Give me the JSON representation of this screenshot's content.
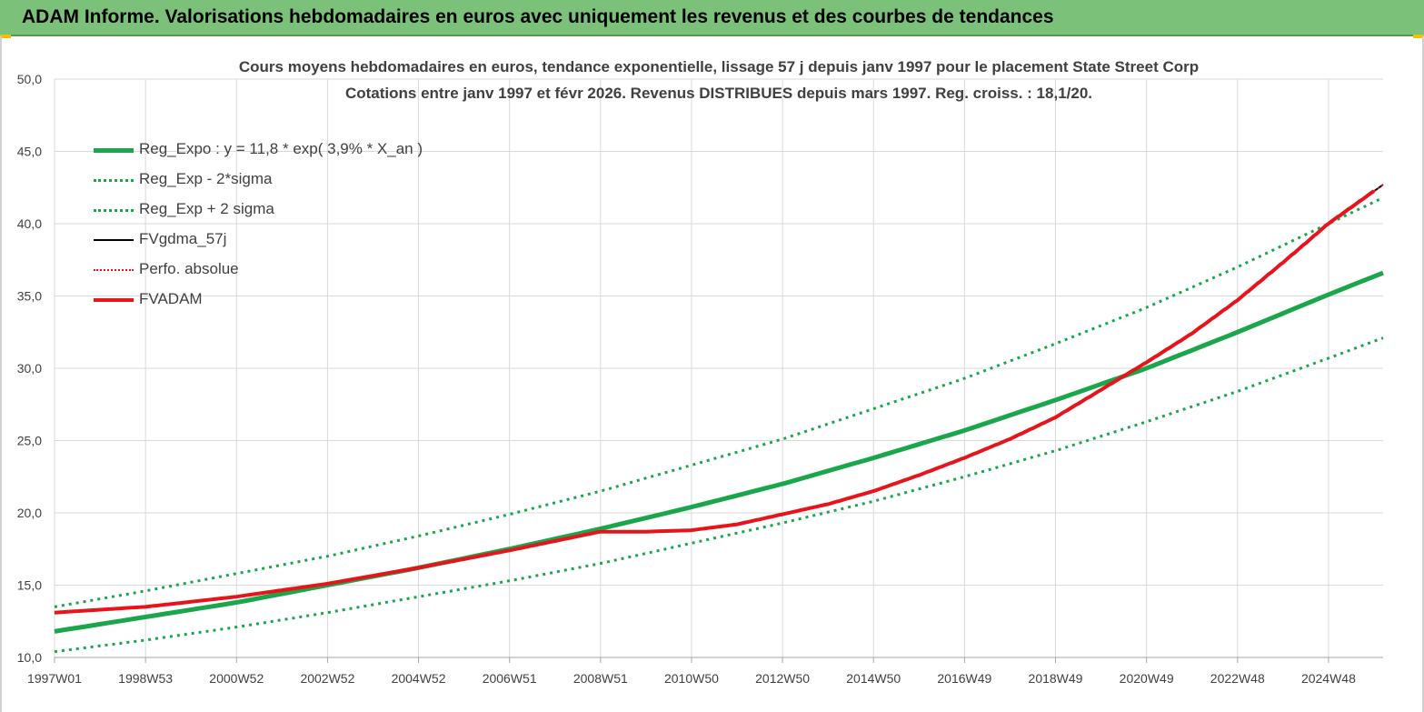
{
  "header": {
    "title": "ADAM Informe. Valorisations hebdomadaires en euros avec uniquement les revenus et des courbes de tendances"
  },
  "chart_data": {
    "type": "line",
    "title": "Cours moyens hebdomadaires en euros, tendance exponentielle, lissage 57 j depuis janv 1997 pour le placement State Street Corp",
    "subtitle": "Cotations entre janv 1997 et févr 2026. Revenus DISTRIBUES depuis mars 1997. Reg. croiss. : 18,1/20.",
    "xlabel": "",
    "ylabel": "",
    "ylim": [
      10,
      50
    ],
    "xlim": [
      1997.0,
      2026.2
    ],
    "grid": true,
    "legend_position": "top-left",
    "y_ticks": [
      "10,0",
      "15,0",
      "20,0",
      "25,0",
      "30,0",
      "35,0",
      "40,0",
      "45,0",
      "50,0"
    ],
    "x_ticks": [
      {
        "label": "1997W01",
        "t": 1997.0
      },
      {
        "label": "1998W53",
        "t": 1999.0
      },
      {
        "label": "2000W52",
        "t": 2001.0
      },
      {
        "label": "2002W52",
        "t": 2003.0
      },
      {
        "label": "2004W52",
        "t": 2005.0
      },
      {
        "label": "2006W51",
        "t": 2007.0
      },
      {
        "label": "2008W51",
        "t": 2009.0
      },
      {
        "label": "2010W50",
        "t": 2011.0
      },
      {
        "label": "2012W50",
        "t": 2013.0
      },
      {
        "label": "2014W50",
        "t": 2015.0
      },
      {
        "label": "2016W49",
        "t": 2017.0
      },
      {
        "label": "2018W49",
        "t": 2019.0
      },
      {
        "label": "2020W49",
        "t": 2021.0
      },
      {
        "label": "2022W48",
        "t": 2023.0
      },
      {
        "label": "2024W48",
        "t": 2025.0
      }
    ],
    "series": [
      {
        "name": "Reg_Expo : y = 11,8 * exp( 3,9% *  X_an )",
        "color": "#1aa64a",
        "style": "solid",
        "width": 5,
        "x": [
          1997.0,
          1999.0,
          2001.0,
          2003.0,
          2005.0,
          2007.0,
          2009.0,
          2011.0,
          2013.0,
          2015.0,
          2017.0,
          2019.0,
          2021.0,
          2023.0,
          2025.0,
          2026.2
        ],
        "y": [
          11.8,
          12.8,
          13.8,
          15.0,
          16.2,
          17.5,
          18.9,
          20.4,
          22.0,
          23.8,
          25.7,
          27.8,
          30.0,
          32.5,
          35.1,
          36.6
        ]
      },
      {
        "name": "Reg_Exp - 2*sigma",
        "color": "#1aa64a",
        "style": "dotted",
        "width": 3,
        "x": [
          1997.0,
          1999.0,
          2001.0,
          2003.0,
          2005.0,
          2007.0,
          2009.0,
          2011.0,
          2013.0,
          2015.0,
          2017.0,
          2019.0,
          2021.0,
          2023.0,
          2025.0,
          2026.2
        ],
        "y": [
          10.4,
          11.2,
          12.1,
          13.1,
          14.2,
          15.3,
          16.5,
          17.9,
          19.3,
          20.8,
          22.5,
          24.3,
          26.3,
          28.4,
          30.7,
          32.1
        ]
      },
      {
        "name": "Reg_Exp + 2 sigma",
        "color": "#1aa64a",
        "style": "dotted",
        "width": 3,
        "x": [
          1997.0,
          1999.0,
          2001.0,
          2003.0,
          2005.0,
          2007.0,
          2009.0,
          2011.0,
          2013.0,
          2015.0,
          2017.0,
          2019.0,
          2021.0,
          2023.0,
          2025.0,
          2026.2
        ],
        "y": [
          13.5,
          14.6,
          15.8,
          17.0,
          18.4,
          19.9,
          21.5,
          23.3,
          25.1,
          27.2,
          29.3,
          31.7,
          34.2,
          37.0,
          40.0,
          41.8
        ]
      },
      {
        "name": "FVgdma_57j",
        "color": "#000000",
        "style": "solid",
        "width": 2,
        "x": [
          1997.0,
          1999.0,
          2001.0,
          2003.0,
          2005.0,
          2007.0,
          2009.0,
          2010.0,
          2011.0,
          2012.0,
          2013.0,
          2014.0,
          2015.0,
          2016.0,
          2017.0,
          2018.0,
          2019.0,
          2020.0,
          2021.0,
          2022.0,
          2023.0,
          2024.0,
          2025.0,
          2026.2
        ],
        "y": [
          13.1,
          13.5,
          14.2,
          15.1,
          16.2,
          17.4,
          18.7,
          18.7,
          18.8,
          19.2,
          19.9,
          20.6,
          21.5,
          22.6,
          23.8,
          25.1,
          26.6,
          28.5,
          30.4,
          32.4,
          34.7,
          37.3,
          40.0,
          42.7
        ]
      },
      {
        "name": "Perfo. absolue",
        "color": "#e8141b",
        "style": "dotted",
        "width": 2,
        "x": [
          1997.0,
          1999.0,
          2001.0,
          2003.0,
          2005.0,
          2007.0,
          2009.0,
          2010.0,
          2011.0,
          2012.0,
          2013.0,
          2014.0,
          2015.0,
          2016.0,
          2017.0,
          2018.0,
          2019.0,
          2020.0,
          2021.0,
          2022.0,
          2023.0,
          2024.0,
          2025.0,
          2026.2
        ],
        "y": [
          13.1,
          13.5,
          14.2,
          15.1,
          16.2,
          17.4,
          18.7,
          18.7,
          18.8,
          19.2,
          19.9,
          20.6,
          21.5,
          22.6,
          23.8,
          25.1,
          26.6,
          28.5,
          30.4,
          32.4,
          34.7,
          37.3,
          40.0,
          42.7
        ]
      },
      {
        "name": "FVADAM",
        "color": "#e8141b",
        "style": "solid",
        "width": 4,
        "x": [
          1997.0,
          1999.0,
          2001.0,
          2003.0,
          2005.0,
          2007.0,
          2009.0,
          2010.0,
          2011.0,
          2012.0,
          2013.0,
          2014.0,
          2015.0,
          2016.0,
          2017.0,
          2018.0,
          2019.0,
          2020.0,
          2021.0,
          2022.0,
          2023.0,
          2024.0,
          2025.0,
          2026.2
        ],
        "y": [
          13.1,
          13.5,
          14.2,
          15.1,
          16.2,
          17.4,
          18.7,
          18.7,
          18.8,
          19.2,
          19.9,
          20.6,
          21.5,
          22.6,
          23.8,
          25.1,
          26.6,
          28.5,
          30.4,
          32.4,
          34.7,
          37.3,
          40.0,
          42.7
        ]
      }
    ]
  }
}
